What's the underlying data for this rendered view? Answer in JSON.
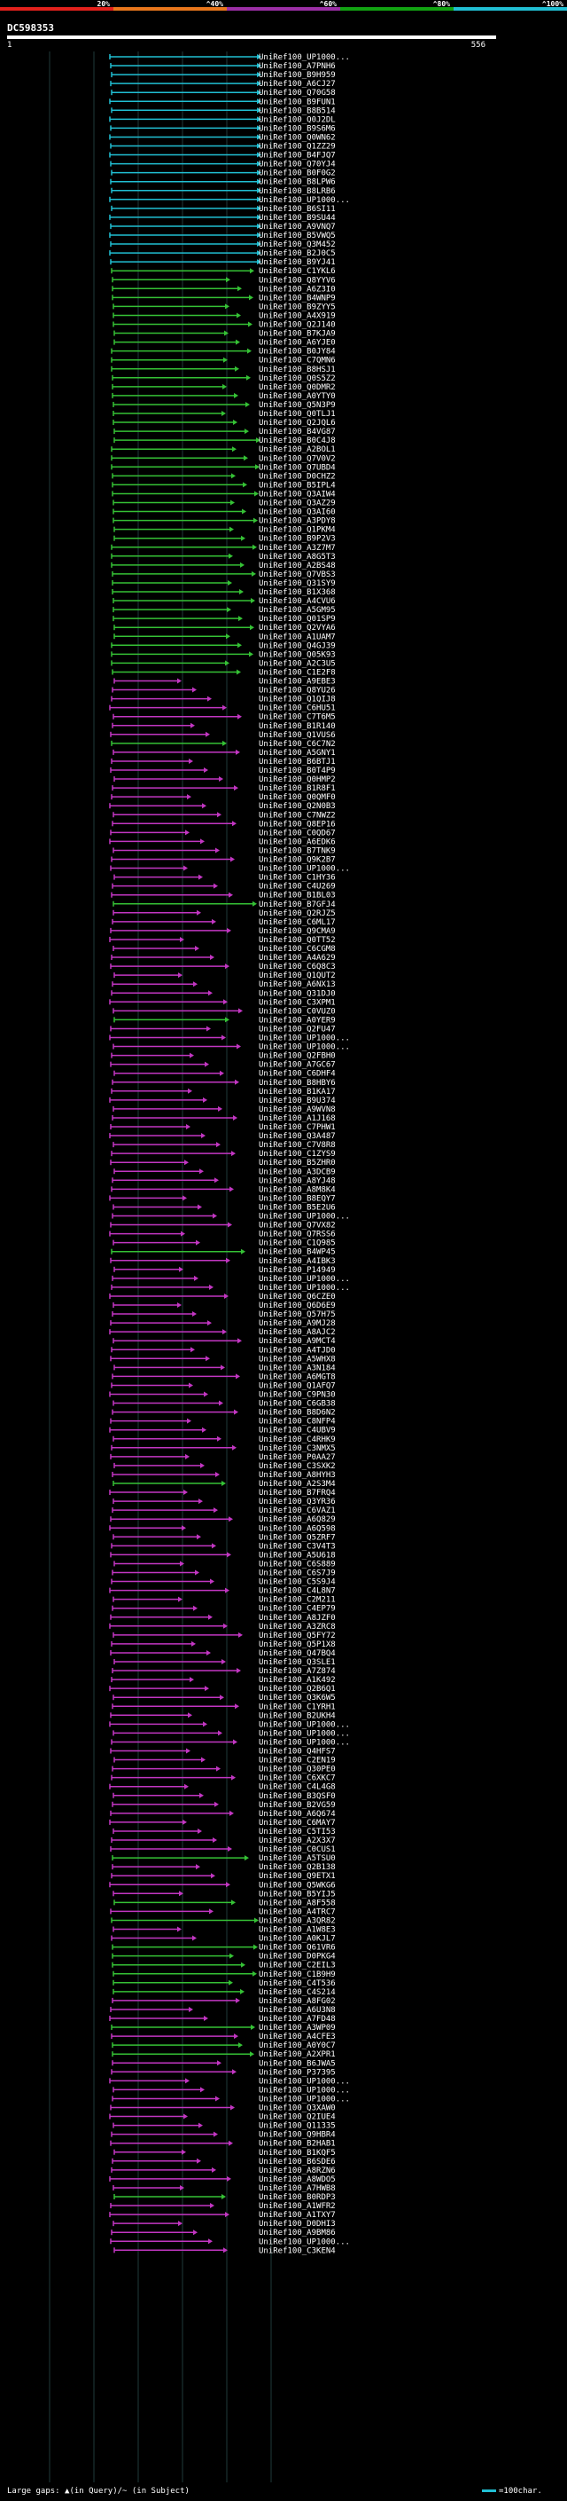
{
  "query_id": "DC598353",
  "ruler_start": "1",
  "ruler_end": "556",
  "color_scale": {
    "labels": [
      "20%",
      "^40%",
      "^60%",
      "^80%",
      "^100%"
    ],
    "colors": [
      "#e3211c",
      "#e8761c",
      "#9c2fa6",
      "#12a312",
      "#21bfd3"
    ]
  },
  "legend": {
    "gaps_text": "Large gaps: ▲(in Query)/~ (in Subject)",
    "scale_text": "=100char."
  },
  "hit_colors": {
    "cyan": "#21bfd3",
    "green": "#35c135",
    "magenta": "#c236c2"
  },
  "hits": [
    {
      "label": "UniRef100_UP1000...",
      "color": "cyan"
    },
    {
      "label": "UniRef100_A7PNH6",
      "color": "cyan"
    },
    {
      "label": "UniRef100_B9H959",
      "color": "cyan"
    },
    {
      "label": "UniRef100_A6CJ27",
      "color": "cyan"
    },
    {
      "label": "UniRef100_Q70G58",
      "color": "cyan"
    },
    {
      "label": "UniRef100_B9FUN1",
      "color": "cyan"
    },
    {
      "label": "UniRef100_B8B514",
      "color": "cyan"
    },
    {
      "label": "UniRef100_Q0J2DL",
      "color": "cyan"
    },
    {
      "label": "UniRef100_B9S6M6",
      "color": "cyan"
    },
    {
      "label": "UniRef100_Q0WN62",
      "color": "cyan"
    },
    {
      "label": "UniRef100_Q1ZZ29",
      "color": "cyan"
    },
    {
      "label": "UniRef100_B4FJQ7",
      "color": "cyan"
    },
    {
      "label": "UniRef100_Q70YJ4",
      "color": "cyan"
    },
    {
      "label": "UniRef100_B0F0G2",
      "color": "cyan"
    },
    {
      "label": "UniRef100_B8LPW6",
      "color": "cyan"
    },
    {
      "label": "UniRef100_B8LRB6",
      "color": "cyan"
    },
    {
      "label": "UniRef100_UP1000...",
      "color": "cyan"
    },
    {
      "label": "UniRef100_B6SI11",
      "color": "cyan"
    },
    {
      "label": "UniRef100_B9SU44",
      "color": "cyan"
    },
    {
      "label": "UniRef100_A9VNQ7",
      "color": "cyan"
    },
    {
      "label": "UniRef100_B5VWQ5",
      "color": "cyan"
    },
    {
      "label": "UniRef100_Q3M452",
      "color": "cyan"
    },
    {
      "label": "UniRef100_B2J0C5",
      "color": "cyan"
    },
    {
      "label": "UniRef100_B9YJ41",
      "color": "cyan"
    },
    {
      "label": "UniRef100_C1YKL6",
      "color": "green"
    },
    {
      "label": "UniRef100_Q8YYV6",
      "color": "green"
    },
    {
      "label": "UniRef100_A6Z3I0",
      "color": "green"
    },
    {
      "label": "UniRef100_B4WNP9",
      "color": "green"
    },
    {
      "label": "UniRef100_B9ZYY5",
      "color": "green"
    },
    {
      "label": "UniRef100_A4X919",
      "color": "green"
    },
    {
      "label": "UniRef100_Q2J140",
      "color": "green"
    },
    {
      "label": "UniRef100_B7KJA9",
      "color": "green"
    },
    {
      "label": "UniRef100_A6YJE0",
      "color": "green"
    },
    {
      "label": "UniRef100_B0JY84",
      "color": "green"
    },
    {
      "label": "UniRef100_C7QMN6",
      "color": "green"
    },
    {
      "label": "UniRef100_B8HSJ1",
      "color": "green"
    },
    {
      "label": "UniRef100_Q0S5Z2",
      "color": "green"
    },
    {
      "label": "UniRef100_Q0DMR2",
      "color": "green"
    },
    {
      "label": "UniRef100_A0YTY0",
      "color": "green"
    },
    {
      "label": "UniRef100_Q5N3P9",
      "color": "green"
    },
    {
      "label": "UniRef100_Q0TLJ1",
      "color": "green"
    },
    {
      "label": "UniRef100_Q2JQL6",
      "color": "green"
    },
    {
      "label": "UniRef100_B4VG87",
      "color": "green"
    },
    {
      "label": "UniRef100_B0C4J8",
      "color": "green"
    },
    {
      "label": "UniRef100_A2BOL1",
      "color": "green"
    },
    {
      "label": "UniRef100_Q7V0V2",
      "color": "green"
    },
    {
      "label": "UniRef100_Q7UBD4",
      "color": "green"
    },
    {
      "label": "UniRef100_D0CHZ2",
      "color": "green"
    },
    {
      "label": "UniRef100_B5IPL4",
      "color": "green"
    },
    {
      "label": "UniRef100_Q3AIW4",
      "color": "green"
    },
    {
      "label": "UniRef100_Q3AZ29",
      "color": "green"
    },
    {
      "label": "UniRef100_Q3AI60",
      "color": "green"
    },
    {
      "label": "UniRef100_A3PDY8",
      "color": "green"
    },
    {
      "label": "UniRef100_Q1PKM4",
      "color": "green"
    },
    {
      "label": "UniRef100_B9P2V3",
      "color": "green"
    },
    {
      "label": "UniRef100_A3Z7M7",
      "color": "green"
    },
    {
      "label": "UniRef100_A8G5T3",
      "color": "green"
    },
    {
      "label": "UniRef100_A2BS48",
      "color": "green"
    },
    {
      "label": "UniRef100_Q7VBS3",
      "color": "green"
    },
    {
      "label": "UniRef100_Q31SY9",
      "color": "green"
    },
    {
      "label": "UniRef100_B1X368",
      "color": "green"
    },
    {
      "label": "UniRef100_A4CVU6",
      "color": "green"
    },
    {
      "label": "UniRef100_A5GM95",
      "color": "green"
    },
    {
      "label": "UniRef100_Q01SP9",
      "color": "green"
    },
    {
      "label": "UniRef100_Q2VYA6",
      "color": "green"
    },
    {
      "label": "UniRef100_A1UAM7",
      "color": "green"
    },
    {
      "label": "UniRef100_Q4GJ39",
      "color": "green"
    },
    {
      "label": "UniRef100_Q05K93",
      "color": "green"
    },
    {
      "label": "UniRef100_A2C3U5",
      "color": "green"
    },
    {
      "label": "UniRef100_C1E2F8",
      "color": "green"
    },
    {
      "label": "UniRef100_A9EBE3",
      "color": "magenta"
    },
    {
      "label": "UniRef100_Q8YU26",
      "color": "magenta"
    },
    {
      "label": "UniRef100_Q1QIJ8",
      "color": "magenta"
    },
    {
      "label": "UniRef100_C6HU51",
      "color": "magenta"
    },
    {
      "label": "UniRef100_C7T6M5",
      "color": "magenta"
    },
    {
      "label": "UniRef100_B1R140",
      "color": "magenta"
    },
    {
      "label": "UniRef100_Q1VUS6",
      "color": "magenta"
    },
    {
      "label": "UniRef100_C6C7N2",
      "color": "green"
    },
    {
      "label": "UniRef100_A5GNY1",
      "color": "magenta"
    },
    {
      "label": "UniRef100_B6BTJ1",
      "color": "magenta"
    },
    {
      "label": "UniRef100_B0T4P9",
      "color": "magenta"
    },
    {
      "label": "UniRef100_Q0HMP2",
      "color": "magenta"
    },
    {
      "label": "UniRef100_B1R8F1",
      "color": "magenta"
    },
    {
      "label": "UniRef100_Q0QMF0",
      "color": "magenta"
    },
    {
      "label": "UniRef100_Q2N0B3",
      "color": "magenta"
    },
    {
      "label": "UniRef100_C7NWZ2",
      "color": "magenta"
    },
    {
      "label": "UniRef100_Q8EP16",
      "color": "magenta"
    },
    {
      "label": "UniRef100_C0QD67",
      "color": "magenta"
    },
    {
      "label": "UniRef100_A6EDK6",
      "color": "magenta"
    },
    {
      "label": "UniRef100_B7TNK9",
      "color": "magenta"
    },
    {
      "label": "UniRef100_Q9K2B7",
      "color": "magenta"
    },
    {
      "label": "UniRef100_UP1000...",
      "color": "magenta"
    },
    {
      "label": "UniRef100_C1HY36",
      "color": "magenta"
    },
    {
      "label": "UniRef100_C4U269",
      "color": "magenta"
    },
    {
      "label": "UniRef100_B1BL03",
      "color": "magenta"
    },
    {
      "label": "UniRef100_B7GFJ4",
      "color": "green"
    },
    {
      "label": "UniRef100_Q2RJZ5",
      "color": "magenta"
    },
    {
      "label": "UniRef100_C6ML17",
      "color": "magenta"
    },
    {
      "label": "UniRef100_Q9CMA9",
      "color": "magenta"
    },
    {
      "label": "UniRef100_Q0TT52",
      "color": "magenta"
    },
    {
      "label": "UniRef100_C6CGM8",
      "color": "magenta"
    },
    {
      "label": "UniRef100_A4A629",
      "color": "magenta"
    },
    {
      "label": "UniRef100_C6Q8C3",
      "color": "magenta"
    },
    {
      "label": "UniRef100_Q1QUT2",
      "color": "magenta"
    },
    {
      "label": "UniRef100_A6NX13",
      "color": "magenta"
    },
    {
      "label": "UniRef100_Q31DJ0",
      "color": "magenta"
    },
    {
      "label": "UniRef100_C3XPM1",
      "color": "magenta"
    },
    {
      "label": "UniRef100_C0VUZ0",
      "color": "magenta"
    },
    {
      "label": "UniRef100_A0YER9",
      "color": "green"
    },
    {
      "label": "UniRef100_Q2FU47",
      "color": "magenta"
    },
    {
      "label": "UniRef100_UP1000...",
      "color": "magenta"
    },
    {
      "label": "UniRef100_UP1000...",
      "color": "magenta"
    },
    {
      "label": "UniRef100_Q2FBH0",
      "color": "magenta"
    },
    {
      "label": "UniRef100_A7GC67",
      "color": "magenta"
    },
    {
      "label": "UniRef100_C6DHF4",
      "color": "magenta"
    },
    {
      "label": "UniRef100_B8HBY6",
      "color": "magenta"
    },
    {
      "label": "UniRef100_B1KA17",
      "color": "magenta"
    },
    {
      "label": "UniRef100_B9U374",
      "color": "magenta"
    },
    {
      "label": "UniRef100_A9WVN8",
      "color": "magenta"
    },
    {
      "label": "UniRef100_A1J168",
      "color": "magenta"
    },
    {
      "label": "UniRef100_C7PHW1",
      "color": "magenta"
    },
    {
      "label": "UniRef100_Q3A487",
      "color": "magenta"
    },
    {
      "label": "UniRef100_C7V8R8",
      "color": "magenta"
    },
    {
      "label": "UniRef100_C1ZYS9",
      "color": "magenta"
    },
    {
      "label": "UniRef100_B5ZHR0",
      "color": "magenta"
    },
    {
      "label": "UniRef100_A3DCB9",
      "color": "magenta"
    },
    {
      "label": "UniRef100_A8YJ48",
      "color": "magenta"
    },
    {
      "label": "UniRef100_A8M8K4",
      "color": "magenta"
    },
    {
      "label": "UniRef100_B8EQY7",
      "color": "magenta"
    },
    {
      "label": "UniRef100_B5E2U6",
      "color": "magenta"
    },
    {
      "label": "UniRef100_UP1000...",
      "color": "magenta"
    },
    {
      "label": "UniRef100_Q7VX82",
      "color": "magenta"
    },
    {
      "label": "UniRef100_Q7RSS6",
      "color": "magenta"
    },
    {
      "label": "UniRef100_C1Q985",
      "color": "magenta"
    },
    {
      "label": "UniRef100_B4WP45",
      "color": "green"
    },
    {
      "label": "UniRef100_A4IBK3",
      "color": "magenta"
    },
    {
      "label": "UniRef100_P14949",
      "color": "magenta"
    },
    {
      "label": "UniRef100_UP1000...",
      "color": "magenta"
    },
    {
      "label": "UniRef100_UP1000...",
      "color": "magenta"
    },
    {
      "label": "UniRef100_Q6CZE0",
      "color": "magenta"
    },
    {
      "label": "UniRef100_Q6D6E9",
      "color": "magenta"
    },
    {
      "label": "UniRef100_Q57H75",
      "color": "magenta"
    },
    {
      "label": "UniRef100_A9MJ28",
      "color": "magenta"
    },
    {
      "label": "UniRef100_A8AJC2",
      "color": "magenta"
    },
    {
      "label": "UniRef100_A9MCT4",
      "color": "magenta"
    },
    {
      "label": "UniRef100_A4TJD0",
      "color": "magenta"
    },
    {
      "label": "UniRef100_A5WHX8",
      "color": "magenta"
    },
    {
      "label": "UniRef100_A3N184",
      "color": "magenta"
    },
    {
      "label": "UniRef100_A6MGT8",
      "color": "magenta"
    },
    {
      "label": "UniRef100_Q1AFQ7",
      "color": "magenta"
    },
    {
      "label": "UniRef100_C9PN30",
      "color": "magenta"
    },
    {
      "label": "UniRef100_C6GB38",
      "color": "magenta"
    },
    {
      "label": "UniRef100_B8D6N2",
      "color": "magenta"
    },
    {
      "label": "UniRef100_C8NFP4",
      "color": "magenta"
    },
    {
      "label": "UniRef100_C4UBV9",
      "color": "magenta"
    },
    {
      "label": "UniRef100_C4RHK9",
      "color": "magenta"
    },
    {
      "label": "UniRef100_C3NMX5",
      "color": "magenta"
    },
    {
      "label": "UniRef100_P0AA27",
      "color": "magenta"
    },
    {
      "label": "UniRef100_C3SXK2",
      "color": "magenta"
    },
    {
      "label": "UniRef100_A8HYH3",
      "color": "magenta"
    },
    {
      "label": "UniRef100_A2S3M4",
      "color": "green"
    },
    {
      "label": "UniRef100_B7FRQ4",
      "color": "magenta"
    },
    {
      "label": "UniRef100_Q3YR36",
      "color": "magenta"
    },
    {
      "label": "UniRef100_C6VAZ1",
      "color": "magenta"
    },
    {
      "label": "UniRef100_A6Q829",
      "color": "magenta"
    },
    {
      "label": "UniRef100_A6Q598",
      "color": "magenta"
    },
    {
      "label": "UniRef100_Q5ZRF7",
      "color": "magenta"
    },
    {
      "label": "UniRef100_C3V4T3",
      "color": "magenta"
    },
    {
      "label": "UniRef100_A5U618",
      "color": "magenta"
    },
    {
      "label": "UniRef100_C6S889",
      "color": "magenta"
    },
    {
      "label": "UniRef100_C6S7J9",
      "color": "magenta"
    },
    {
      "label": "UniRef100_C5S9J4",
      "color": "magenta"
    },
    {
      "label": "UniRef100_C4L8N7",
      "color": "magenta"
    },
    {
      "label": "UniRef100_C2M211",
      "color": "magenta"
    },
    {
      "label": "UniRef100_C4EP79",
      "color": "magenta"
    },
    {
      "label": "UniRef100_A8JZF0",
      "color": "magenta"
    },
    {
      "label": "UniRef100_A3ZRC8",
      "color": "magenta"
    },
    {
      "label": "UniRef100_Q5FY72",
      "color": "magenta"
    },
    {
      "label": "UniRef100_Q5P1X8",
      "color": "magenta"
    },
    {
      "label": "UniRef100_Q47BQ4",
      "color": "magenta"
    },
    {
      "label": "UniRef100_Q3SLE1",
      "color": "magenta"
    },
    {
      "label": "UniRef100_A7Z874",
      "color": "magenta"
    },
    {
      "label": "UniRef100_A1K492",
      "color": "magenta"
    },
    {
      "label": "UniRef100_Q2B6Q1",
      "color": "magenta"
    },
    {
      "label": "UniRef100_Q3K6W5",
      "color": "magenta"
    },
    {
      "label": "UniRef100_C1YRH1",
      "color": "magenta"
    },
    {
      "label": "UniRef100_B2UKH4",
      "color": "magenta"
    },
    {
      "label": "UniRef100_UP1000...",
      "color": "magenta"
    },
    {
      "label": "UniRef100_UP1000...",
      "color": "magenta"
    },
    {
      "label": "UniRef100_UP1000...",
      "color": "magenta"
    },
    {
      "label": "UniRef100_Q4HFS7",
      "color": "magenta"
    },
    {
      "label": "UniRef100_C2EN19",
      "color": "magenta"
    },
    {
      "label": "UniRef100_Q30PE0",
      "color": "magenta"
    },
    {
      "label": "UniRef100_C6XKC7",
      "color": "magenta"
    },
    {
      "label": "UniRef100_C4L4G8",
      "color": "magenta"
    },
    {
      "label": "UniRef100_B3QSF0",
      "color": "magenta"
    },
    {
      "label": "UniRef100_B2VG59",
      "color": "magenta"
    },
    {
      "label": "UniRef100_A6Q674",
      "color": "magenta"
    },
    {
      "label": "UniRef100_C6MAY7",
      "color": "magenta"
    },
    {
      "label": "UniRef100_C5TI53",
      "color": "magenta"
    },
    {
      "label": "UniRef100_A2X3X7",
      "color": "magenta"
    },
    {
      "label": "UniRef100_C0CUS1",
      "color": "magenta"
    },
    {
      "label": "UniRef100_A5TSU0",
      "color": "green"
    },
    {
      "label": "UniRef100_Q2B138",
      "color": "magenta"
    },
    {
      "label": "UniRef100_Q9ETX1",
      "color": "magenta"
    },
    {
      "label": "UniRef100_Q5WKG6",
      "color": "magenta"
    },
    {
      "label": "UniRef100_B5YIJ5",
      "color": "magenta"
    },
    {
      "label": "UniRef100_A8F558",
      "color": "green"
    },
    {
      "label": "UniRef100_A4TRC7",
      "color": "magenta"
    },
    {
      "label": "UniRef100_A3QR82",
      "color": "green"
    },
    {
      "label": "UniRef100_A1W8E3",
      "color": "magenta"
    },
    {
      "label": "UniRef100_A0KJL7",
      "color": "magenta"
    },
    {
      "label": "UniRef100_Q61VR6",
      "color": "green"
    },
    {
      "label": "UniRef100_D0PKG4",
      "color": "green"
    },
    {
      "label": "UniRef100_C2EIL3",
      "color": "green"
    },
    {
      "label": "UniRef100_C1B9H9",
      "color": "green"
    },
    {
      "label": "UniRef100_C4T536",
      "color": "green"
    },
    {
      "label": "UniRef100_C4S214",
      "color": "green"
    },
    {
      "label": "UniRef100_A8FG02",
      "color": "magenta"
    },
    {
      "label": "UniRef100_A6U3N8",
      "color": "magenta"
    },
    {
      "label": "UniRef100_A7FD48",
      "color": "magenta"
    },
    {
      "label": "UniRef100_A3WP09",
      "color": "green"
    },
    {
      "label": "UniRef100_A4CFE3",
      "color": "magenta"
    },
    {
      "label": "UniRef100_A0Y0C7",
      "color": "green"
    },
    {
      "label": "UniRef100_A2XPR1",
      "color": "green"
    },
    {
      "label": "UniRef100_B6JWA5",
      "color": "magenta"
    },
    {
      "label": "UniRef100_P37395",
      "color": "magenta"
    },
    {
      "label": "UniRef100_UP1000...",
      "color": "magenta"
    },
    {
      "label": "UniRef100_UP1000...",
      "color": "magenta"
    },
    {
      "label": "UniRef100_UP1000...",
      "color": "magenta"
    },
    {
      "label": "UniRef100_Q3XAW0",
      "color": "magenta"
    },
    {
      "label": "UniRef100_Q2IUE4",
      "color": "magenta"
    },
    {
      "label": "UniRef100_Q11335",
      "color": "magenta"
    },
    {
      "label": "UniRef100_Q9HBR4",
      "color": "magenta"
    },
    {
      "label": "UniRef100_B2HAB1",
      "color": "magenta"
    },
    {
      "label": "UniRef100_B1KQF5",
      "color": "magenta"
    },
    {
      "label": "UniRef100_B6SDE6",
      "color": "magenta"
    },
    {
      "label": "UniRef100_A8RZN6",
      "color": "magenta"
    },
    {
      "label": "UniRef100_A8WDO5",
      "color": "magenta"
    },
    {
      "label": "UniRef100_A7HWB8",
      "color": "magenta"
    },
    {
      "label": "UniRef100_B0RDP3",
      "color": "green"
    },
    {
      "label": "UniRef100_A1WFR2",
      "color": "magenta"
    },
    {
      "label": "UniRef100_A1TXY7",
      "color": "magenta"
    },
    {
      "label": "UniRef100_D0DHI3",
      "color": "magenta"
    },
    {
      "label": "UniRef100_A9BM86",
      "color": "magenta"
    },
    {
      "label": "UniRef100_UP1000...",
      "color": "magenta"
    },
    {
      "label": "UniRef100_C3KEN4",
      "color": "magenta"
    }
  ]
}
